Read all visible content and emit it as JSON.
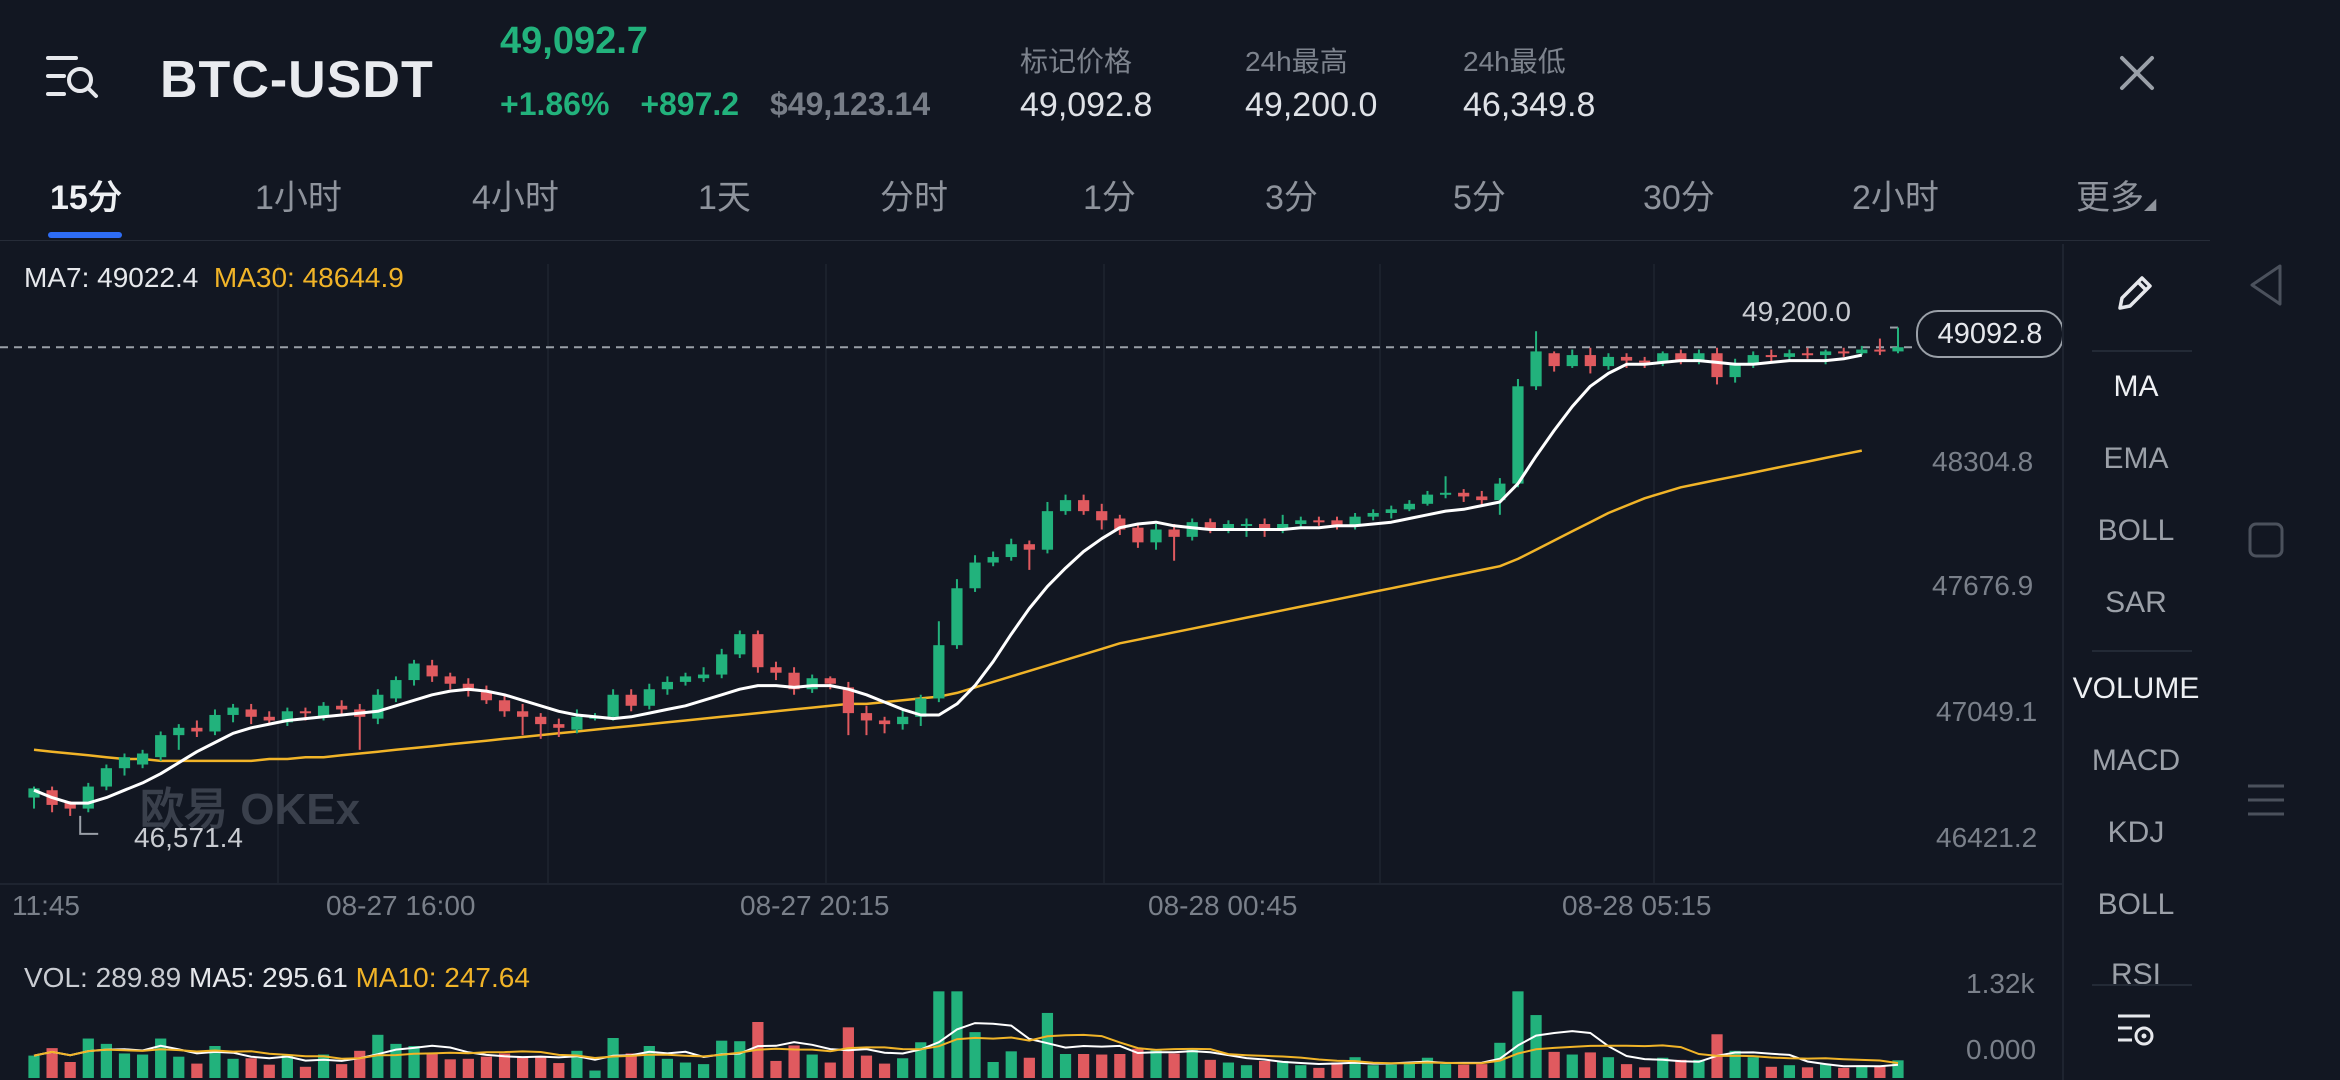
{
  "header": {
    "pair": "BTC-USDT",
    "last_price": "49,092.7",
    "change_pct": "+1.86%",
    "change_abs": "+897.2",
    "usd_price": "$49,123.14",
    "mark_label": "标记价格",
    "mark_value": "49,092.8",
    "high_label": "24h最高",
    "high_value": "49,200.0",
    "low_label": "24h最低",
    "low_value": "46,349.8"
  },
  "tabs": [
    "15分",
    "1小时",
    "4小时",
    "1天",
    "分时",
    "1分",
    "3分",
    "5分",
    "30分",
    "2小时",
    "更多"
  ],
  "active_tab": "15分",
  "main_legend": {
    "ma7": "MA7: 49022.4",
    "ma30": "MA30: 48644.9"
  },
  "price_labels": {
    "high_marker": "49,200.0",
    "current_badge": "49092.8",
    "low_marker": "46,571.4",
    "y_ticks": [
      "48304.8",
      "47676.9",
      "47049.1",
      "46421.2"
    ]
  },
  "x_ticks": [
    "11:45",
    "08-27 16:00",
    "08-27 20:15",
    "08-28 00:45",
    "08-28 05:15"
  ],
  "watermark": "欧易 OKEx",
  "vol_legend": {
    "vol": "VOL: 289.89",
    "ma5": "MA5: 295.61",
    "ma10": "MA10: 247.64"
  },
  "vol_ticks": [
    "1.32k",
    "0.000"
  ],
  "indicators": [
    "MA",
    "EMA",
    "BOLL",
    "SAR",
    "VOLUME",
    "MACD",
    "KDJ",
    "BOLL",
    "RSI"
  ],
  "colors": {
    "up": "#22b27c",
    "down": "#e05a5f",
    "ma7": "#ffffff",
    "ma30": "#f1b428",
    "background": "#121722"
  },
  "chart_data": {
    "type": "candlestick",
    "price_range": [
      46300,
      49350
    ],
    "candles": [
      [
        46640,
        46690,
        46580,
        46700
      ],
      [
        46680,
        46600,
        46560,
        46700
      ],
      [
        46610,
        46580,
        46540,
        46620
      ],
      [
        46580,
        46700,
        46560,
        46720
      ],
      [
        46700,
        46800,
        46680,
        46820
      ],
      [
        46800,
        46860,
        46760,
        46880
      ],
      [
        46820,
        46880,
        46800,
        46900
      ],
      [
        46860,
        46980,
        46840,
        47000
      ],
      [
        46980,
        47020,
        46900,
        47040
      ],
      [
        47020,
        47000,
        46970,
        47060
      ],
      [
        47000,
        47090,
        46980,
        47120
      ],
      [
        47090,
        47130,
        47050,
        47150
      ],
      [
        47120,
        47080,
        47040,
        47150
      ],
      [
        47080,
        47060,
        47040,
        47110
      ],
      [
        47050,
        47110,
        47030,
        47130
      ],
      [
        47110,
        47100,
        47060,
        47130
      ],
      [
        47080,
        47140,
        47060,
        47160
      ],
      [
        47140,
        47120,
        47090,
        47170
      ],
      [
        47120,
        47080,
        46900,
        47150
      ],
      [
        47070,
        47200,
        47040,
        47230
      ],
      [
        47180,
        47280,
        47160,
        47300
      ],
      [
        47280,
        47370,
        47250,
        47390
      ],
      [
        47360,
        47300,
        47270,
        47390
      ],
      [
        47300,
        47260,
        47230,
        47320
      ],
      [
        47260,
        47220,
        47190,
        47290
      ],
      [
        47220,
        47170,
        47150,
        47250
      ],
      [
        47170,
        47110,
        47080,
        47200
      ],
      [
        47110,
        47080,
        46980,
        47150
      ],
      [
        47080,
        47040,
        46960,
        47100
      ],
      [
        47040,
        47020,
        46970,
        47070
      ],
      [
        47010,
        47080,
        46990,
        47120
      ],
      [
        47080,
        47080,
        47060,
        47100
      ],
      [
        47080,
        47200,
        47060,
        47230
      ],
      [
        47200,
        47140,
        47110,
        47230
      ],
      [
        47140,
        47230,
        47120,
        47260
      ],
      [
        47230,
        47270,
        47200,
        47300
      ],
      [
        47270,
        47300,
        47250,
        47320
      ],
      [
        47290,
        47310,
        47270,
        47350
      ],
      [
        47310,
        47420,
        47290,
        47450
      ],
      [
        47420,
        47530,
        47400,
        47550
      ],
      [
        47530,
        47350,
        47320,
        47550
      ],
      [
        47350,
        47320,
        47280,
        47380
      ],
      [
        47320,
        47230,
        47200,
        47350
      ],
      [
        47230,
        47290,
        47210,
        47310
      ],
      [
        47290,
        47260,
        47230,
        47300
      ],
      [
        47240,
        47100,
        46980,
        47270
      ],
      [
        47100,
        47060,
        46980,
        47140
      ],
      [
        47060,
        47040,
        46990,
        47080
      ],
      [
        47040,
        47080,
        47010,
        47120
      ],
      [
        47080,
        47180,
        47030,
        47200
      ],
      [
        47180,
        47470,
        47160,
        47600
      ],
      [
        47470,
        47780,
        47450,
        47830
      ],
      [
        47780,
        47920,
        47760,
        47960
      ],
      [
        47920,
        47950,
        47900,
        47980
      ],
      [
        47950,
        48020,
        47930,
        48050
      ],
      [
        48020,
        47990,
        47880,
        48040
      ],
      [
        47990,
        48200,
        47970,
        48250
      ],
      [
        48200,
        48260,
        48180,
        48290
      ],
      [
        48260,
        48200,
        48180,
        48290
      ],
      [
        48200,
        48150,
        48100,
        48240
      ],
      [
        48160,
        48100,
        48070,
        48180
      ],
      [
        48110,
        48030,
        48000,
        48130
      ],
      [
        48030,
        48100,
        47990,
        48130
      ],
      [
        48100,
        48060,
        47930,
        48130
      ],
      [
        48060,
        48140,
        48040,
        48160
      ],
      [
        48140,
        48100,
        48080,
        48160
      ],
      [
        48100,
        48130,
        48080,
        48150
      ],
      [
        48120,
        48130,
        48060,
        48160
      ],
      [
        48130,
        48100,
        48060,
        48160
      ],
      [
        48100,
        48130,
        48080,
        48180
      ],
      [
        48130,
        48150,
        48110,
        48170
      ],
      [
        48150,
        48140,
        48120,
        48170
      ],
      [
        48150,
        48120,
        48100,
        48170
      ],
      [
        48120,
        48170,
        48100,
        48190
      ],
      [
        48170,
        48190,
        48150,
        48210
      ],
      [
        48190,
        48210,
        48160,
        48230
      ],
      [
        48210,
        48240,
        48200,
        48260
      ],
      [
        48240,
        48290,
        48230,
        48310
      ],
      [
        48290,
        48300,
        48270,
        48390
      ],
      [
        48300,
        48280,
        48250,
        48320
      ],
      [
        48280,
        48260,
        48230,
        48310
      ],
      [
        48260,
        48350,
        48180,
        48380
      ],
      [
        48350,
        48880,
        48330,
        48920
      ],
      [
        48880,
        49070,
        48860,
        49180
      ],
      [
        49060,
        48990,
        48960,
        49070
      ],
      [
        48990,
        49050,
        48980,
        49080
      ],
      [
        49050,
        48990,
        48950,
        49090
      ],
      [
        48990,
        49040,
        48970,
        49060
      ],
      [
        49040,
        49020,
        48980,
        49060
      ],
      [
        49020,
        49010,
        48980,
        49040
      ],
      [
        49010,
        49060,
        48990,
        49070
      ],
      [
        49060,
        49020,
        49000,
        49080
      ],
      [
        49020,
        49060,
        49000,
        49080
      ],
      [
        49060,
        48930,
        48890,
        49090
      ],
      [
        48930,
        49000,
        48900,
        49030
      ],
      [
        49000,
        49050,
        48980,
        49070
      ],
      [
        49050,
        49040,
        49010,
        49080
      ],
      [
        49040,
        49060,
        49020,
        49080
      ],
      [
        49060,
        49050,
        49030,
        49090
      ],
      [
        49050,
        49070,
        49000,
        49080
      ],
      [
        49070,
        49060,
        49040,
        49090
      ],
      [
        49060,
        49080,
        49050,
        49100
      ],
      [
        49080,
        49070,
        49050,
        49140
      ],
      [
        49070,
        49092.8,
        49060,
        49200
      ]
    ],
    "ma7": [
      46680,
      46640,
      46610,
      46610,
      46640,
      46680,
      46720,
      46770,
      46830,
      46890,
      46940,
      46990,
      47020,
      47040,
      47060,
      47070,
      47080,
      47090,
      47100,
      47110,
      47140,
      47170,
      47200,
      47220,
      47230,
      47220,
      47200,
      47170,
      47140,
      47110,
      47090,
      47080,
      47070,
      47080,
      47100,
      47120,
      47140,
      47170,
      47200,
      47230,
      47250,
      47250,
      47240,
      47250,
      47250,
      47230,
      47200,
      47160,
      47120,
      47090,
      47090,
      47150,
      47250,
      47380,
      47530,
      47670,
      47790,
      47890,
      47980,
      48050,
      48110,
      48130,
      48140,
      48120,
      48110,
      48100,
      48100,
      48100,
      48100,
      48100,
      48110,
      48110,
      48120,
      48120,
      48130,
      48140,
      48160,
      48180,
      48200,
      48210,
      48230,
      48250,
      48350,
      48500,
      48640,
      48770,
      48880,
      48950,
      49000,
      49000,
      49010,
      49020,
      49020,
      49010,
      49000,
      49000,
      49010,
      49020,
      49020,
      49020,
      49030,
      49050
    ],
    "ma30": [
      46900,
      46890,
      46880,
      46870,
      46860,
      46850,
      46850,
      46840,
      46840,
      46840,
      46840,
      46840,
      46840,
      46850,
      46850,
      46860,
      46860,
      46870,
      46880,
      46890,
      46900,
      46910,
      46920,
      46930,
      46940,
      46950,
      46960,
      46970,
      46980,
      46990,
      47000,
      47010,
      47020,
      47030,
      47040,
      47050,
      47060,
      47070,
      47080,
      47090,
      47100,
      47110,
      47120,
      47130,
      47140,
      47150,
      47150,
      47160,
      47170,
      47180,
      47190,
      47210,
      47240,
      47270,
      47300,
      47330,
      47360,
      47390,
      47420,
      47450,
      47480,
      47500,
      47520,
      47540,
      47560,
      47580,
      47600,
      47620,
      47640,
      47660,
      47680,
      47700,
      47720,
      47740,
      47760,
      47780,
      47800,
      47820,
      47840,
      47860,
      47880,
      47900,
      47940,
      47990,
      48040,
      48090,
      48140,
      48190,
      48230,
      48270,
      48300,
      48330,
      48350,
      48370,
      48390,
      48410,
      48430,
      48450,
      48470,
      48490,
      48510,
      48530
    ],
    "vol_range": [
      0,
      1320
    ]
  }
}
